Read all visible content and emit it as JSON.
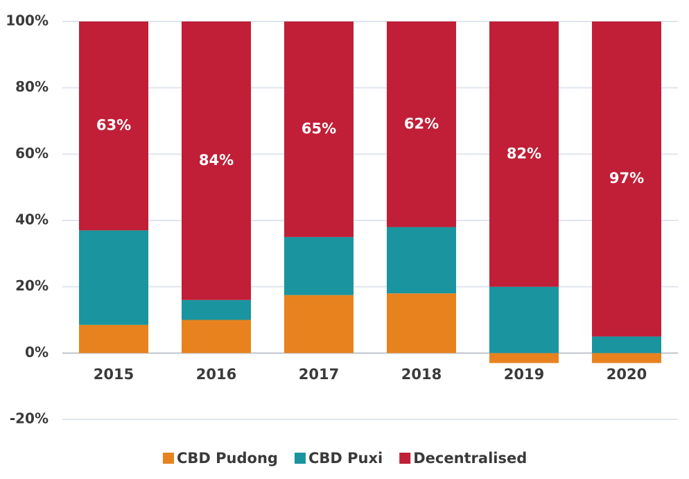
{
  "chart_data": {
    "type": "stacked_bar",
    "categories": [
      "2015",
      "2016",
      "2017",
      "2018",
      "2019",
      "2020"
    ],
    "series": [
      {
        "name": "CBD Pudong",
        "color": "#e8821e",
        "values": [
          8.5,
          10,
          17.5,
          18,
          -3,
          -3
        ]
      },
      {
        "name": "CBD Puxi",
        "color": "#1a949e",
        "values": [
          28.5,
          6,
          17.5,
          20,
          20,
          5
        ]
      },
      {
        "name": "Decentralised",
        "color": "#c01f37",
        "values": [
          63,
          84,
          65,
          62,
          82,
          97
        ],
        "value_labels": [
          "63%",
          "84%",
          "65%",
          "62%",
          "82%",
          "97%"
        ]
      }
    ],
    "ylim": [
      -20,
      100
    ],
    "yticks": [
      {
        "value": -20,
        "label": "-20%"
      },
      {
        "value": 0,
        "label": "0%"
      },
      {
        "value": 20,
        "label": "20%"
      },
      {
        "value": 40,
        "label": "40%"
      },
      {
        "value": 60,
        "label": "60%"
      },
      {
        "value": 80,
        "label": "80%"
      },
      {
        "value": 100,
        "label": "100%"
      }
    ],
    "grid": true,
    "legend": "bottom"
  }
}
